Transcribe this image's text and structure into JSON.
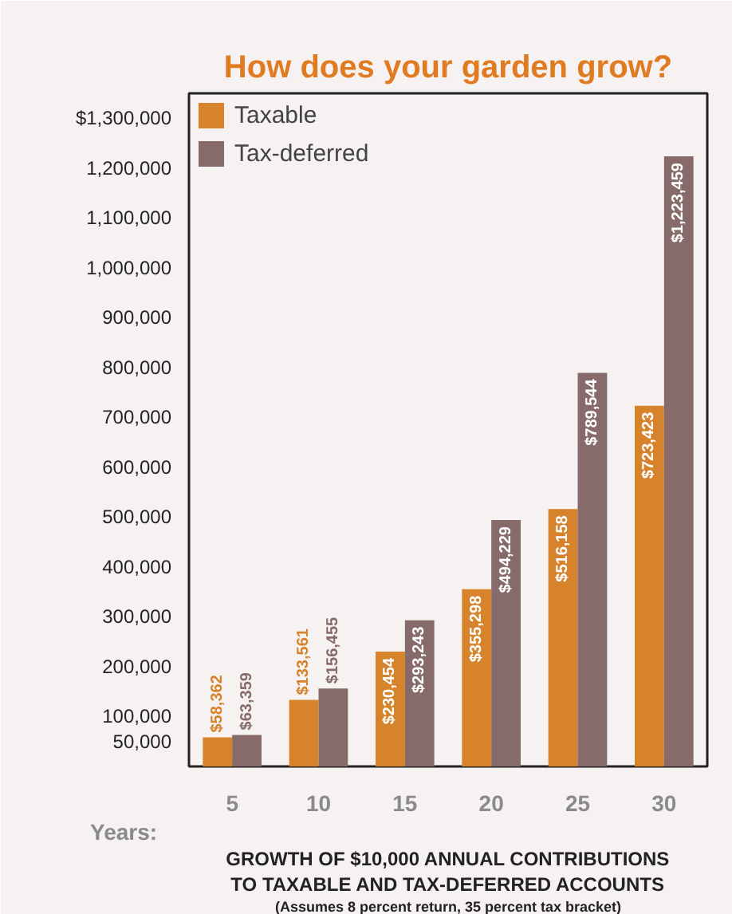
{
  "chart_data": {
    "type": "bar",
    "title": "How does your garden grow?",
    "xlabel": "Years:",
    "categories": [
      "5",
      "10",
      "15",
      "20",
      "25",
      "30"
    ],
    "series": [
      {
        "name": "Taxable",
        "color": "#d6832b",
        "values": [
          58362,
          133561,
          230454,
          355298,
          516158,
          723423
        ],
        "value_labels": [
          "$58,362",
          "$133,561",
          "$230,454",
          "$355,298",
          "$516,158",
          "$723,423"
        ]
      },
      {
        "name": "Tax-deferred",
        "color": "#876b6b",
        "values": [
          63359,
          156455,
          293243,
          494229,
          789544,
          1223459
        ],
        "value_labels": [
          "$63,359",
          "$156,455",
          "$293,243",
          "$494,229",
          "$789,544",
          "$1,223,459"
        ]
      }
    ],
    "ylim": [
      0,
      1350000
    ],
    "yticks": [
      {
        "value": 50000,
        "label": "50,000"
      },
      {
        "value": 100000,
        "label": "100,000"
      },
      {
        "value": 200000,
        "label": "200,000"
      },
      {
        "value": 300000,
        "label": "300,000"
      },
      {
        "value": 400000,
        "label": "400,000"
      },
      {
        "value": 500000,
        "label": "500,000"
      },
      {
        "value": 600000,
        "label": "600,000"
      },
      {
        "value": 700000,
        "label": "700,000"
      },
      {
        "value": 800000,
        "label": "800,000"
      },
      {
        "value": 900000,
        "label": "900,000"
      },
      {
        "value": 1000000,
        "label": "1,000,000"
      },
      {
        "value": 1100000,
        "label": "1,100,000"
      },
      {
        "value": 1200000,
        "label": "1,200,000"
      },
      {
        "value": 1300000,
        "label": "$1,300,000"
      }
    ],
    "legend": "top left",
    "grid": false,
    "annotations": [
      "GROWTH OF $10,000 ANNUAL CONTRIBUTIONS",
      "TO TAXABLE AND TAX-DEFERRED ACCOUNTS",
      "(Assumes 8 percent return, 35 percent tax bracket)"
    ]
  }
}
